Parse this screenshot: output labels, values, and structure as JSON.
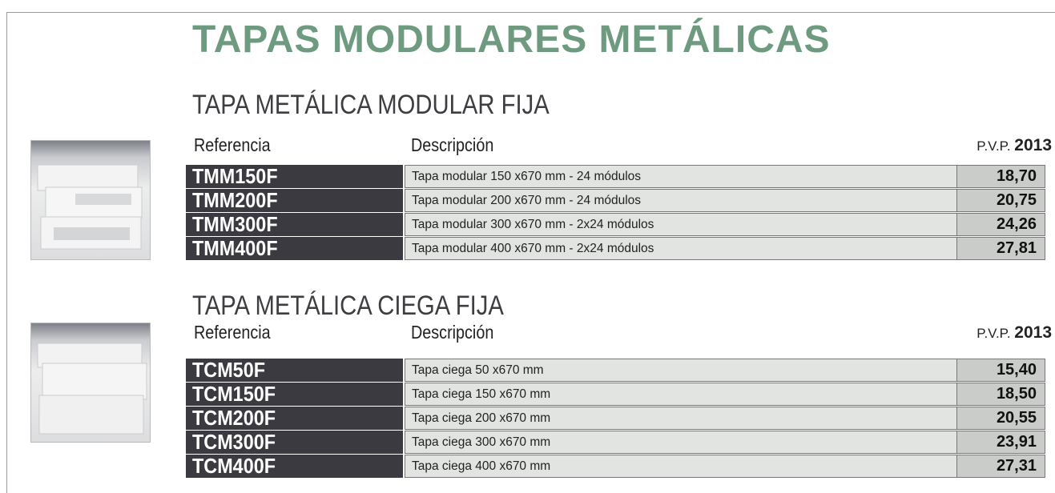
{
  "title": "TAPAS MODULARES METÁLICAS",
  "sections": [
    {
      "title": "TAPA METÁLICA MODULAR FIJA",
      "headers": {
        "reference": "Referencia",
        "description": "Descripción",
        "price_label": "P.V.P.",
        "price_year": "2013"
      },
      "rows": [
        [
          "TMM150F",
          "Tapa modular 150 x670 mm - 24 módulos",
          "18,70"
        ],
        [
          "TMM200F",
          "Tapa modular 200 x670 mm - 24 módulos",
          "20,75"
        ],
        [
          "TMM300F",
          "Tapa modular 300 x670 mm - 2x24 módulos",
          "24,26"
        ],
        [
          "TMM400F",
          "Tapa modular 400 x670 mm - 2x24 módulos",
          "27,81"
        ]
      ]
    },
    {
      "title": "TAPA METÁLICA CIEGA FIJA",
      "headers": {
        "reference": "Referencia",
        "description": "Descripción",
        "price_label": "P.V.P.",
        "price_year": "2013"
      },
      "rows": [
        [
          "TCM50F",
          "Tapa ciega 50 x670 mm",
          "15,40"
        ],
        [
          "TCM150F",
          "Tapa ciega 150 x670 mm",
          "18,50"
        ],
        [
          "TCM200F",
          "Tapa ciega 200 x670 mm",
          "20,55"
        ],
        [
          "TCM300F",
          "Tapa ciega 300 x670 mm",
          "23,91"
        ],
        [
          "TCM400F",
          "Tapa ciega 400 x670 mm",
          "27,31"
        ]
      ]
    }
  ]
}
